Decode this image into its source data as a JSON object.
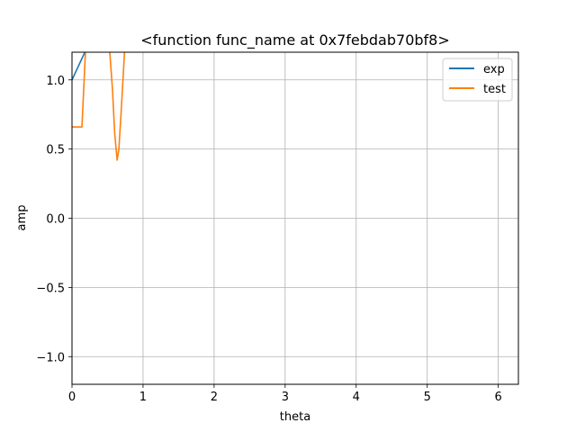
{
  "chart_data": {
    "type": "line",
    "title": "<function func_name at 0x7febdab70bf8>",
    "xlabel": "theta",
    "ylabel": "amp",
    "xlim": [
      0,
      6.283
    ],
    "ylim": [
      -1.2,
      1.2
    ],
    "xticks": [
      0,
      1,
      2,
      3,
      4,
      5,
      6
    ],
    "xtick_labels": [
      "0",
      "1",
      "2",
      "3",
      "4",
      "5",
      "6"
    ],
    "yticks": [
      -1.0,
      -0.5,
      0.0,
      0.5,
      1.0
    ],
    "ytick_labels": [
      "−1.0",
      "−0.5",
      "0.0",
      "0.5",
      "1.0"
    ],
    "grid": true,
    "legend_position": "top-right",
    "series": [
      {
        "name": "exp",
        "color": "#1f77b4",
        "x": [
          0,
          0.19
        ],
        "y": [
          1.0,
          1.21
        ]
      },
      {
        "name": "test",
        "color": "#ff7f0e",
        "x": [
          0,
          0.14,
          0.17,
          0.19,
          0.53,
          0.57,
          0.6,
          0.635,
          0.66,
          0.7,
          0.74
        ],
        "y": [
          0.66,
          0.66,
          0.99,
          1.21,
          1.21,
          0.93,
          0.62,
          0.42,
          0.5,
          0.84,
          1.21
        ]
      }
    ]
  }
}
